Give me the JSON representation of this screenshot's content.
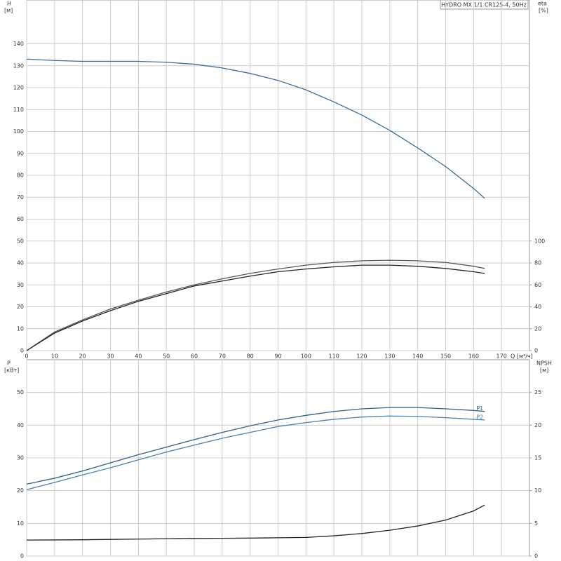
{
  "chart_data": [
    {
      "type": "line",
      "title": "HYDRO MX 1/1 CR125-4, 50Hz",
      "y_label": "H",
      "y_unit": "[м]",
      "y2_label": "eta",
      "y2_unit": "[%]",
      "x_label": "Q [м³/ч]",
      "x": [
        0,
        10,
        20,
        30,
        40,
        50,
        60,
        70,
        80,
        90,
        100,
        110,
        120,
        130,
        140,
        150,
        160,
        164
      ],
      "xlim": [
        0,
        180
      ],
      "xticks": [
        0,
        10,
        20,
        30,
        40,
        50,
        60,
        70,
        80,
        90,
        100,
        110,
        120,
        130,
        140,
        150,
        160,
        170
      ],
      "ylim": [
        0,
        160
      ],
      "yticks": [
        0,
        10,
        20,
        30,
        40,
        50,
        60,
        70,
        80,
        90,
        100,
        110,
        120,
        130,
        140
      ],
      "y2lim": [
        0,
        320
      ],
      "y2ticks": [
        0,
        20,
        40,
        60,
        80,
        100
      ],
      "grid": true,
      "series": [
        {
          "color": "#3a6b9c",
          "values": [
            133,
            132.4,
            132,
            132,
            132,
            131.6,
            130.7,
            129,
            126.5,
            123.3,
            119,
            113.5,
            107.5,
            100.5,
            92.5,
            84,
            74,
            69.5
          ]
        },
        {
          "color": "#555555",
          "axis": "y2",
          "values": [
            0,
            17,
            28,
            38,
            46,
            53.5,
            60,
            65.5,
            70.5,
            74.5,
            78,
            80.5,
            82,
            82.5,
            82,
            80.5,
            77,
            75
          ]
        },
        {
          "color": "#222222",
          "axis": "y2",
          "values": [
            0,
            16,
            27,
            36.5,
            45,
            52,
            59,
            63.5,
            68,
            72,
            74.5,
            76.5,
            78,
            78,
            77,
            75,
            72,
            70.5
          ]
        }
      ]
    },
    {
      "type": "line",
      "y_label": "P",
      "y_unit": "[кВт]",
      "y2_label": "NPSH",
      "y2_unit": "[м]",
      "x": [
        0,
        10,
        20,
        30,
        40,
        50,
        60,
        70,
        80,
        90,
        100,
        110,
        120,
        130,
        140,
        150,
        160,
        164
      ],
      "xlim": [
        0,
        180
      ],
      "ylim": [
        0,
        60
      ],
      "yticks": [
        0,
        10,
        20,
        30,
        40,
        50
      ],
      "y2lim": [
        0,
        30
      ],
      "y2ticks": [
        0,
        5,
        10,
        15,
        20,
        25
      ],
      "grid": true,
      "series": [
        {
          "name": "P1",
          "color": "#2e5f8a",
          "values": [
            22,
            23.8,
            26,
            28.5,
            31,
            33.3,
            35.6,
            37.8,
            39.8,
            41.6,
            43,
            44.2,
            45,
            45.4,
            45.4,
            45,
            44.5,
            44.2
          ]
        },
        {
          "name": "P2",
          "color": "#4a7fb0",
          "values": [
            20.3,
            22.5,
            24.8,
            27,
            29.4,
            31.8,
            33.9,
            36,
            37.8,
            39.6,
            40.8,
            41.8,
            42.5,
            42.8,
            42.7,
            42.3,
            41.8,
            41.6
          ]
        },
        {
          "color": "#222222",
          "axis": "y2",
          "values": [
            2.45,
            2.47,
            2.5,
            2.55,
            2.6,
            2.65,
            2.7,
            2.72,
            2.75,
            2.8,
            2.85,
            3.1,
            3.45,
            3.95,
            4.6,
            5.5,
            6.9,
            7.8
          ]
        }
      ]
    }
  ]
}
